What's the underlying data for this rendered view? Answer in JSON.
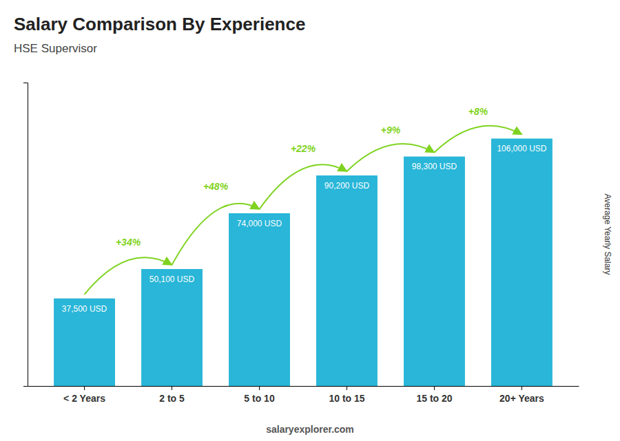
{
  "chart_data": {
    "type": "bar",
    "title": "Salary Comparison By Experience",
    "subtitle": "HSE Supervisor",
    "ylabel": "Average Yearly Salary",
    "footer": "salaryexplorer.com",
    "categories": [
      "< 2 Years",
      "2 to 5",
      "5 to 10",
      "10 to 15",
      "15 to 20",
      "20+ Years"
    ],
    "values": [
      37500,
      50100,
      74000,
      90200,
      98300,
      106000
    ],
    "value_labels": [
      "37,500 USD",
      "50,100 USD",
      "74,000 USD",
      "90,200 USD",
      "98,300 USD",
      "106,000 USD"
    ],
    "data_labels": true,
    "color": "#29B6D8",
    "ylim": [
      0,
      130000
    ],
    "tick_labels": "x",
    "grid": false,
    "annotations": [
      {
        "text": "+34%",
        "color": "#7FD320"
      },
      {
        "text": "+48%",
        "color": "#7FD320"
      },
      {
        "text": "+22%",
        "color": "#7FD320"
      },
      {
        "text": "+9%",
        "color": "#7FD320"
      },
      {
        "text": "+8%",
        "color": "#7FD320"
      }
    ]
  }
}
